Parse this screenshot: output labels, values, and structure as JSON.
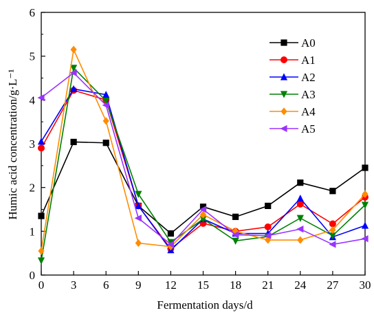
{
  "chart_data": {
    "type": "line",
    "xlabel": "Fermentation days/d",
    "ylabel": "Humic acid concentration/g·L⁻¹",
    "xlim": [
      0,
      30
    ],
    "ylim": [
      0,
      6
    ],
    "x_ticks": [
      "0",
      "3",
      "6",
      "9",
      "12",
      "15",
      "18",
      "21",
      "24",
      "27",
      "30"
    ],
    "y_ticks": [
      "0",
      "1",
      "2",
      "3",
      "4",
      "5",
      "6"
    ],
    "grid": false,
    "legend_position": "top-right",
    "x": [
      0,
      3,
      6,
      9,
      12,
      15,
      18,
      21,
      24,
      27,
      30
    ],
    "series": [
      {
        "name": "A0",
        "color": "#000000",
        "marker": "square",
        "values": [
          1.35,
          3.04,
          3.02,
          1.58,
          0.95,
          1.56,
          1.33,
          1.58,
          2.11,
          1.92,
          2.45
        ]
      },
      {
        "name": "A1",
        "color": "#ff0000",
        "marker": "circle",
        "values": [
          2.9,
          4.22,
          4.0,
          1.58,
          0.6,
          1.18,
          1.0,
          1.1,
          1.62,
          1.17,
          1.78
        ]
      },
      {
        "name": "A2",
        "color": "#0000ff",
        "marker": "triangle-up",
        "values": [
          3.05,
          4.25,
          4.12,
          1.58,
          0.57,
          1.28,
          0.95,
          0.95,
          1.75,
          0.87,
          1.13
        ]
      },
      {
        "name": "A3",
        "color": "#008000",
        "marker": "triangle-down",
        "values": [
          0.33,
          4.73,
          3.98,
          1.85,
          0.75,
          1.28,
          0.78,
          0.88,
          1.3,
          0.9,
          1.6
        ]
      },
      {
        "name": "A4",
        "color": "#ff8c00",
        "marker": "diamond",
        "values": [
          0.55,
          5.15,
          3.52,
          0.73,
          0.65,
          1.38,
          1.0,
          0.8,
          0.8,
          1.03,
          1.85
        ]
      },
      {
        "name": "A5",
        "color": "#9933ff",
        "marker": "triangle-left",
        "values": [
          4.05,
          4.62,
          3.88,
          1.3,
          0.7,
          1.5,
          0.92,
          0.9,
          1.05,
          0.7,
          0.83
        ]
      }
    ]
  }
}
